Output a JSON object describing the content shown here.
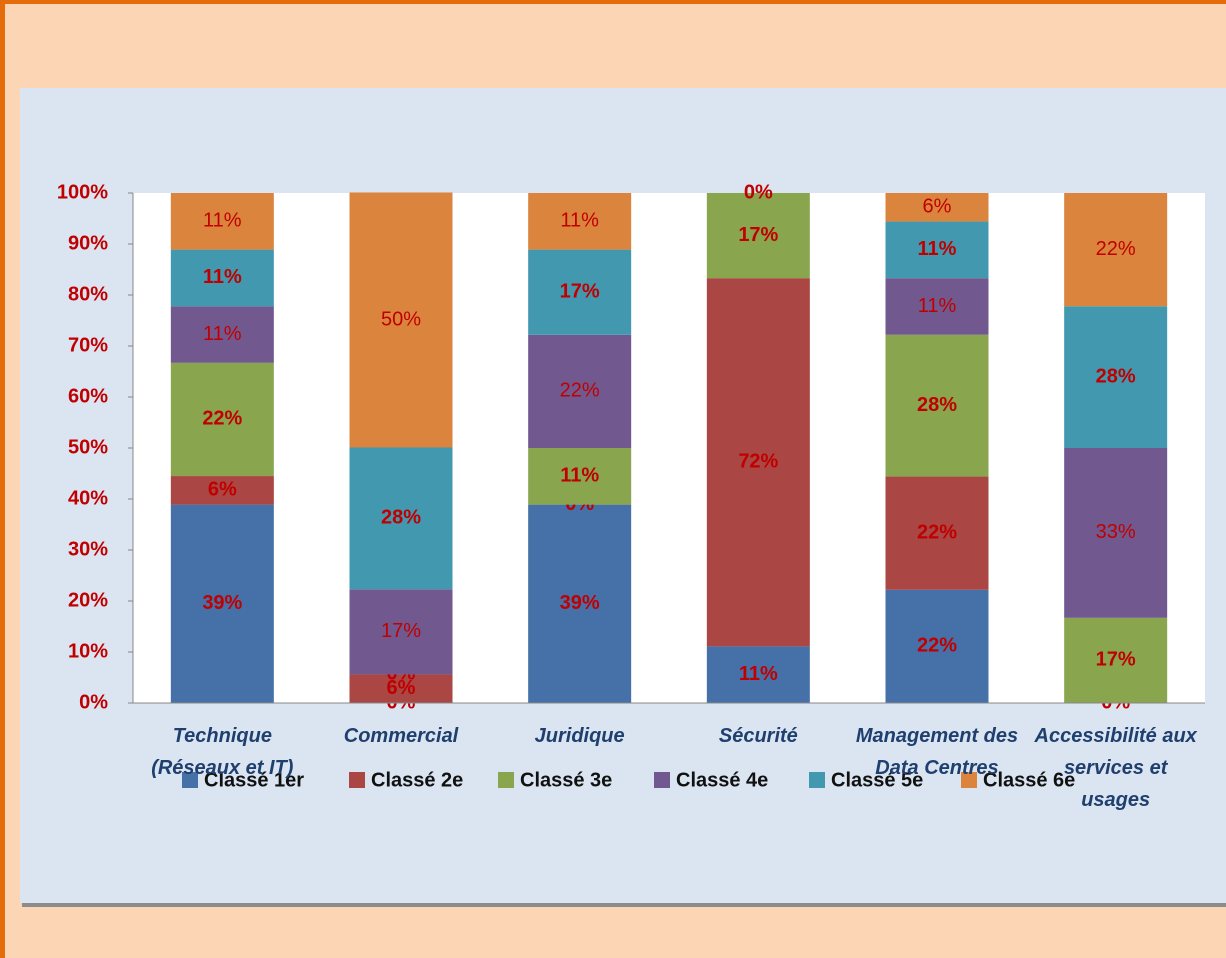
{
  "chart_data": {
    "type": "stacked_bar",
    "categories": [
      "Technique (Réseaux et IT)",
      "Commercial",
      "Juridique",
      "Sécurité",
      "Management des Data Centres",
      "Accessibilité aux services et usages"
    ],
    "series": [
      {
        "name": "Classé 1er",
        "color": "#4571a8",
        "values": [
          38.9,
          0,
          38.9,
          11.1,
          22.2,
          0
        ],
        "value_labels": [
          "39%",
          "0%",
          "39%",
          "11%",
          "22%",
          "0%"
        ]
      },
      {
        "name": "Classé 2e",
        "color": "#aa4643",
        "values": [
          5.6,
          5.6,
          0,
          72.2,
          22.2,
          null
        ],
        "value_labels": [
          "6%",
          "6%",
          "0%",
          "72%",
          "22%",
          null
        ]
      },
      {
        "name": "Classé 3e",
        "color": "#89a54e",
        "values": [
          22.2,
          0,
          11.1,
          16.7,
          27.8,
          16.7
        ],
        "value_labels": [
          "22%",
          "0%",
          "11%",
          "17%",
          "28%",
          "17%"
        ]
      },
      {
        "name": "Classé 4e",
        "color": "#71588f",
        "values": [
          11.1,
          16.7,
          22.2,
          null,
          11.1,
          33.3
        ],
        "value_labels": [
          "11%",
          "17%",
          "22%",
          null,
          "11%",
          "33%"
        ]
      },
      {
        "name": "Classé 5e",
        "color": "#4198af",
        "values": [
          11.1,
          27.8,
          16.7,
          0,
          11.1,
          27.8
        ],
        "value_labels": [
          "11%",
          "28%",
          "17%",
          "0%",
          "11%",
          "28%"
        ]
      },
      {
        "name": "Classé 6e",
        "color": "#db843d",
        "values": [
          11.1,
          50,
          11.1,
          null,
          5.6,
          22.2
        ],
        "value_labels": [
          "11%",
          "50%",
          "11%",
          null,
          "6%",
          "22%"
        ]
      }
    ],
    "ylim": [
      0,
      100
    ],
    "yticks": [
      {
        "value": 0,
        "label": "0%"
      },
      {
        "value": 10,
        "label": "10%"
      },
      {
        "value": 20,
        "label": "20%"
      },
      {
        "value": 30,
        "label": "30%"
      },
      {
        "value": 40,
        "label": "40%"
      },
      {
        "value": 50,
        "label": "50%"
      },
      {
        "value": 60,
        "label": "60%"
      },
      {
        "value": 70,
        "label": "70%"
      },
      {
        "value": 80,
        "label": "80%"
      },
      {
        "value": 90,
        "label": "90%"
      },
      {
        "value": 100,
        "label": "100%"
      }
    ],
    "legend": "bottom"
  }
}
